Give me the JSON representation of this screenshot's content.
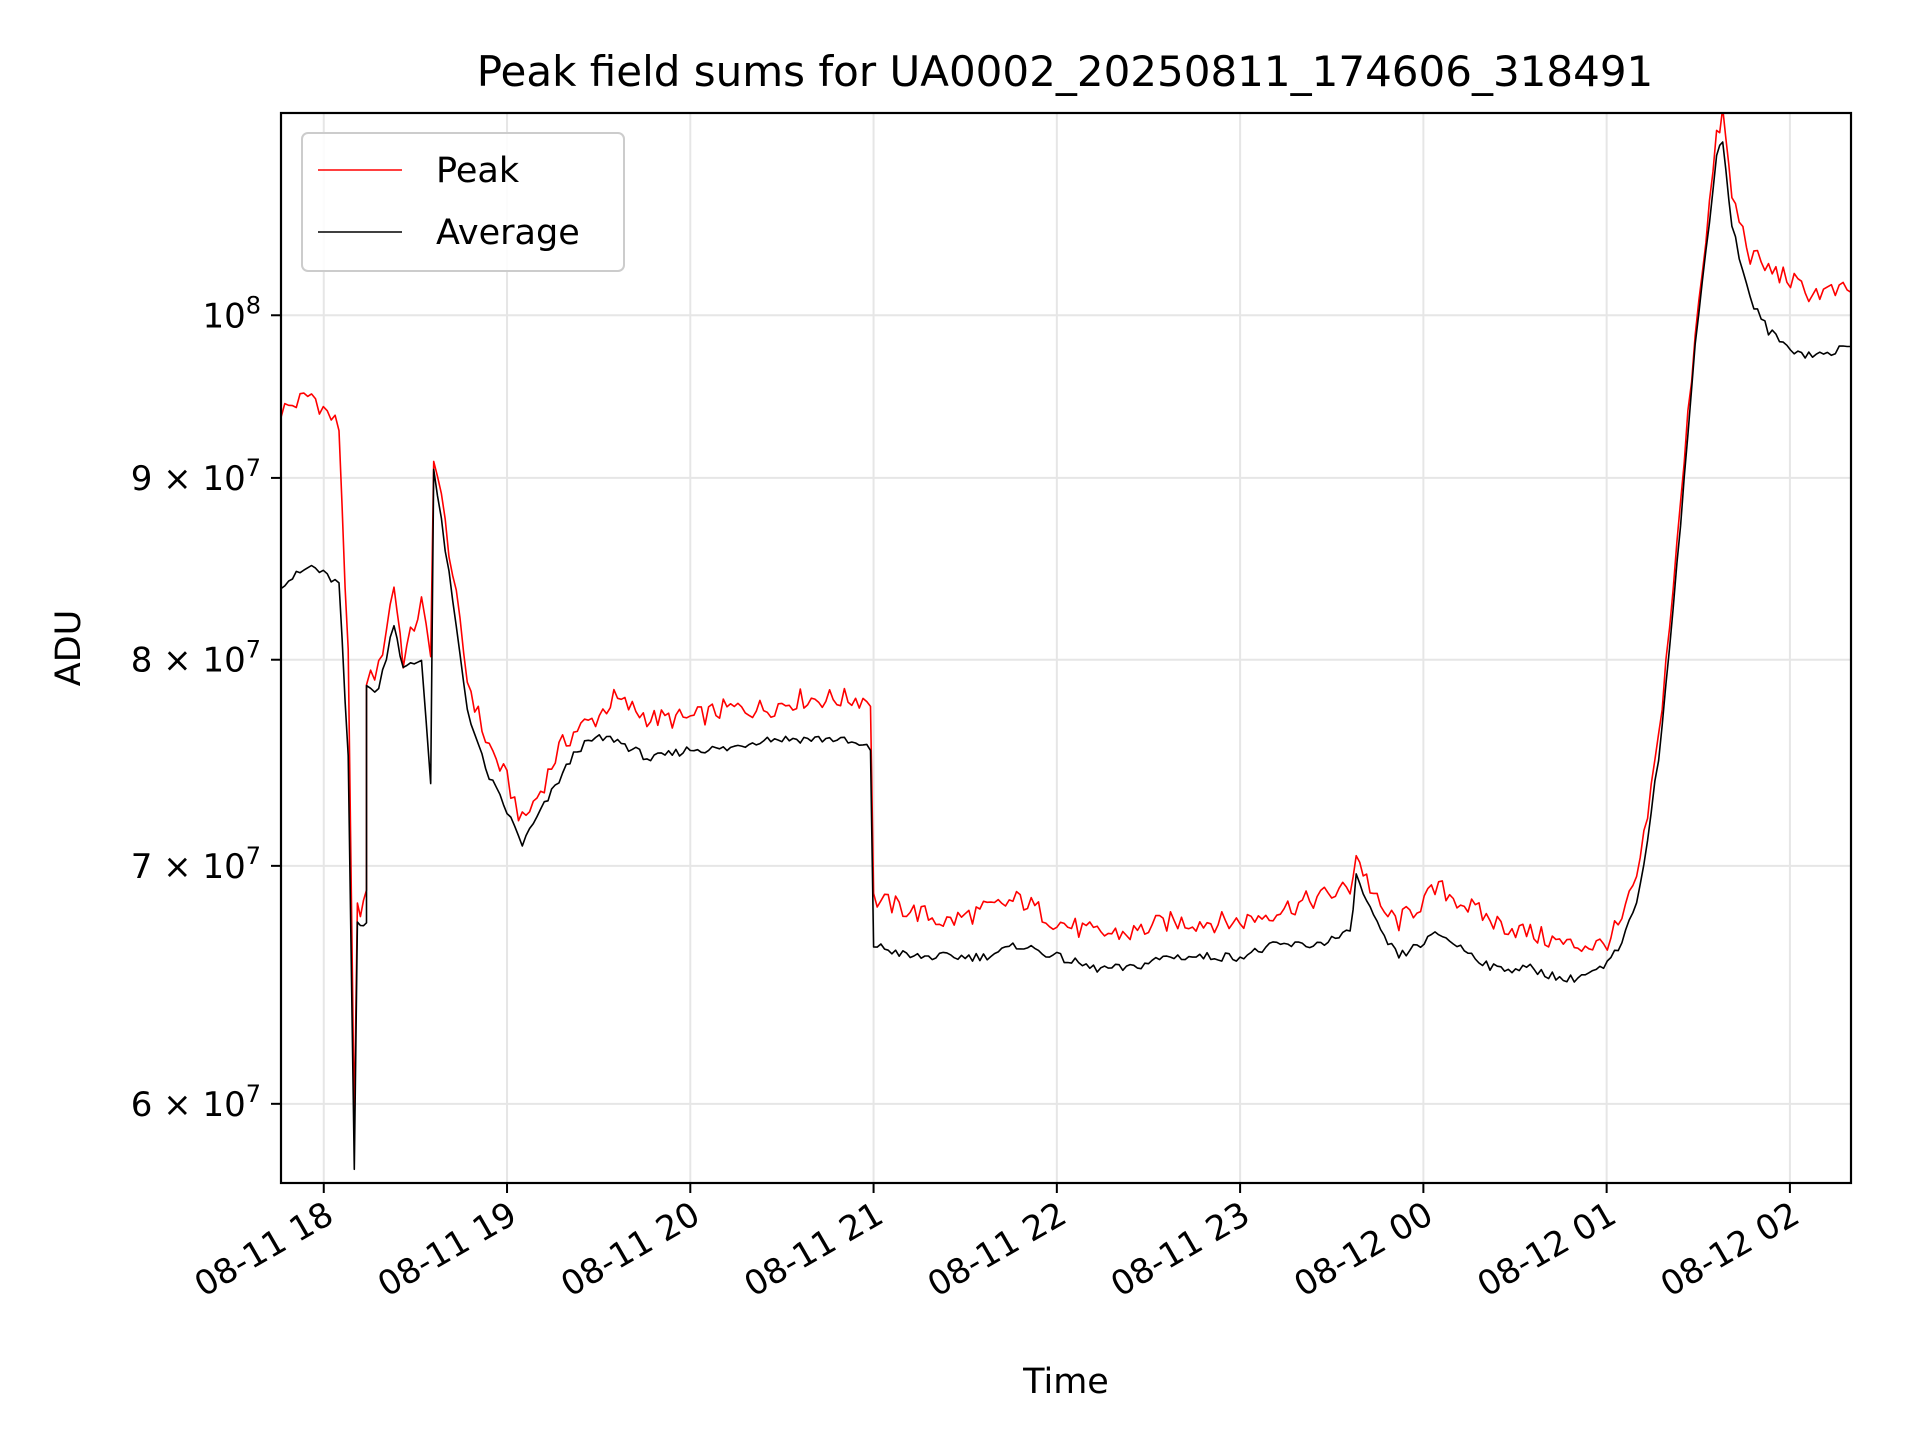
{
  "chart_data": {
    "type": "line",
    "title": "Peak field sums for UA0002_20250811_174606_318491",
    "xlabel": "Time",
    "ylabel": "ADU",
    "y_scale": "log",
    "grid": true,
    "legend_position": "top-left",
    "x_unit": "hours since 2025-08-11 00:00",
    "xlim": [
      "2025-08-11 17:46",
      "2025-08-12 02:20"
    ],
    "ylim": [
      57000000,
      114000000
    ],
    "x_ticks": [
      {
        "value": "2025-08-11 18:00",
        "label": "08-11 18"
      },
      {
        "value": "2025-08-11 19:00",
        "label": "08-11 19"
      },
      {
        "value": "2025-08-11 20:00",
        "label": "08-11 20"
      },
      {
        "value": "2025-08-11 21:00",
        "label": "08-11 21"
      },
      {
        "value": "2025-08-11 22:00",
        "label": "08-11 22"
      },
      {
        "value": "2025-08-11 23:00",
        "label": "08-11 23"
      },
      {
        "value": "2025-08-12 00:00",
        "label": "08-12 00"
      },
      {
        "value": "2025-08-12 01:00",
        "label": "08-12 01"
      },
      {
        "value": "2025-08-12 02:00",
        "label": "08-12 02"
      }
    ],
    "y_ticks": [
      {
        "value": 60000000,
        "mant": "6",
        "exp": "7"
      },
      {
        "value": 70000000,
        "mant": "7",
        "exp": "7"
      },
      {
        "value": 80000000,
        "mant": "8",
        "exp": "7"
      },
      {
        "value": 90000000,
        "mant": "9",
        "exp": "7"
      },
      {
        "value": 100000000,
        "mant": "",
        "exp": "8"
      }
    ],
    "series": [
      {
        "name": "Peak",
        "color": "#ff0000",
        "points": [
          [
            "2025-08-11 17:46",
            94000000
          ],
          [
            "2025-08-11 17:56",
            95000000
          ],
          [
            "2025-08-11 18:05",
            93000000
          ],
          [
            "2025-08-11 18:08",
            80000000
          ],
          [
            "2025-08-11 18:10",
            59000000
          ],
          [
            "2025-08-11 18:11",
            68000000
          ],
          [
            "2025-08-11 18:14",
            68500000
          ],
          [
            "2025-08-11 18:14",
            79000000
          ],
          [
            "2025-08-11 18:18",
            79500000
          ],
          [
            "2025-08-11 18:23",
            84000000
          ],
          [
            "2025-08-11 18:26",
            80000000
          ],
          [
            "2025-08-11 18:32",
            83000000
          ],
          [
            "2025-08-11 18:35",
            80000000
          ],
          [
            "2025-08-11 18:36",
            91500000
          ],
          [
            "2025-08-11 18:41",
            86000000
          ],
          [
            "2025-08-11 18:47",
            79000000
          ],
          [
            "2025-08-11 18:53",
            76000000
          ],
          [
            "2025-08-11 19:00",
            74000000
          ],
          [
            "2025-08-11 19:05",
            72000000
          ],
          [
            "2025-08-11 19:11",
            73500000
          ],
          [
            "2025-08-11 19:17",
            75500000
          ],
          [
            "2025-08-11 19:23",
            76500000
          ],
          [
            "2025-08-11 19:29",
            77000000
          ],
          [
            "2025-08-11 19:35",
            78000000
          ],
          [
            "2025-08-11 19:41",
            77500000
          ],
          [
            "2025-08-11 19:47",
            77000000
          ],
          [
            "2025-08-11 20:00",
            77000000
          ],
          [
            "2025-08-11 20:12",
            77500000
          ],
          [
            "2025-08-11 20:24",
            77500000
          ],
          [
            "2025-08-11 20:36",
            78000000
          ],
          [
            "2025-08-11 20:48",
            78000000
          ],
          [
            "2025-08-11 20:59",
            78000000
          ],
          [
            "2025-08-11 21:00",
            68500000
          ],
          [
            "2025-08-11 21:12",
            68000000
          ],
          [
            "2025-08-11 21:24",
            67500000
          ],
          [
            "2025-08-11 21:36",
            68000000
          ],
          [
            "2025-08-11 21:48",
            68500000
          ],
          [
            "2025-08-11 22:00",
            67500000
          ],
          [
            "2025-08-11 22:12",
            67000000
          ],
          [
            "2025-08-11 22:24",
            67000000
          ],
          [
            "2025-08-11 22:36",
            67500000
          ],
          [
            "2025-08-11 22:48",
            67500000
          ],
          [
            "2025-08-11 23:00",
            67500000
          ],
          [
            "2025-08-11 23:12",
            68000000
          ],
          [
            "2025-08-11 23:24",
            68500000
          ],
          [
            "2025-08-11 23:36",
            69000000
          ],
          [
            "2025-08-11 23:38",
            70500000
          ],
          [
            "2025-08-11 23:46",
            68000000
          ],
          [
            "2025-08-11 23:52",
            67500000
          ],
          [
            "2025-08-12 00:05",
            69000000
          ],
          [
            "2025-08-12 00:11",
            68500000
          ],
          [
            "2025-08-12 00:23",
            67500000
          ],
          [
            "2025-08-12 00:35",
            67000000
          ],
          [
            "2025-08-12 00:47",
            66500000
          ],
          [
            "2025-08-12 00:59",
            66500000
          ],
          [
            "2025-08-12 01:05",
            67500000
          ],
          [
            "2025-08-12 01:11",
            70000000
          ],
          [
            "2025-08-12 01:17",
            76000000
          ],
          [
            "2025-08-12 01:23",
            86000000
          ],
          [
            "2025-08-12 01:29",
            99000000
          ],
          [
            "2025-08-12 01:36",
            112000000
          ],
          [
            "2025-08-12 01:38",
            114000000
          ],
          [
            "2025-08-12 01:41",
            108000000
          ],
          [
            "2025-08-12 01:47",
            104000000
          ],
          [
            "2025-08-12 01:53",
            103000000
          ],
          [
            "2025-08-12 01:59",
            102500000
          ],
          [
            "2025-08-12 02:05",
            101500000
          ],
          [
            "2025-08-12 02:11",
            101500000
          ],
          [
            "2025-08-12 02:20",
            101500000
          ]
        ]
      },
      {
        "name": "Average",
        "color": "#000000",
        "points": [
          [
            "2025-08-11 17:46",
            84000000
          ],
          [
            "2025-08-11 17:56",
            85000000
          ],
          [
            "2025-08-11 18:05",
            84000000
          ],
          [
            "2025-08-11 18:08",
            75000000
          ],
          [
            "2025-08-11 18:10",
            57500000
          ],
          [
            "2025-08-11 18:11",
            67500000
          ],
          [
            "2025-08-11 18:14",
            67500000
          ],
          [
            "2025-08-11 18:14",
            78500000
          ],
          [
            "2025-08-11 18:18",
            78500000
          ],
          [
            "2025-08-11 18:23",
            82000000
          ],
          [
            "2025-08-11 18:26",
            79500000
          ],
          [
            "2025-08-11 18:32",
            80000000
          ],
          [
            "2025-08-11 18:35",
            74000000
          ],
          [
            "2025-08-11 18:36",
            90500000
          ],
          [
            "2025-08-11 18:41",
            84500000
          ],
          [
            "2025-08-11 18:47",
            77500000
          ],
          [
            "2025-08-11 18:53",
            74500000
          ],
          [
            "2025-08-11 19:00",
            72500000
          ],
          [
            "2025-08-11 19:05",
            71000000
          ],
          [
            "2025-08-11 19:11",
            72500000
          ],
          [
            "2025-08-11 19:17",
            74000000
          ],
          [
            "2025-08-11 19:23",
            75500000
          ],
          [
            "2025-08-11 19:29",
            76000000
          ],
          [
            "2025-08-11 19:35",
            76000000
          ],
          [
            "2025-08-11 19:41",
            75500000
          ],
          [
            "2025-08-11 19:47",
            75000000
          ],
          [
            "2025-08-11 20:00",
            75500000
          ],
          [
            "2025-08-11 20:12",
            75500000
          ],
          [
            "2025-08-11 20:24",
            76000000
          ],
          [
            "2025-08-11 20:36",
            76000000
          ],
          [
            "2025-08-11 20:48",
            76000000
          ],
          [
            "2025-08-11 20:59",
            75500000
          ],
          [
            "2025-08-11 21:00",
            66500000
          ],
          [
            "2025-08-11 21:12",
            66000000
          ],
          [
            "2025-08-11 21:24",
            66000000
          ],
          [
            "2025-08-11 21:36",
            66000000
          ],
          [
            "2025-08-11 21:48",
            66500000
          ],
          [
            "2025-08-11 22:00",
            66000000
          ],
          [
            "2025-08-11 22:12",
            65500000
          ],
          [
            "2025-08-11 22:24",
            65500000
          ],
          [
            "2025-08-11 22:36",
            66000000
          ],
          [
            "2025-08-11 22:48",
            66000000
          ],
          [
            "2025-08-11 23:00",
            66000000
          ],
          [
            "2025-08-11 23:12",
            66500000
          ],
          [
            "2025-08-11 23:24",
            66500000
          ],
          [
            "2025-08-11 23:36",
            67000000
          ],
          [
            "2025-08-11 23:38",
            69500000
          ],
          [
            "2025-08-11 23:46",
            67000000
          ],
          [
            "2025-08-11 23:52",
            66000000
          ],
          [
            "2025-08-12 00:05",
            67000000
          ],
          [
            "2025-08-12 00:11",
            66500000
          ],
          [
            "2025-08-12 00:23",
            65500000
          ],
          [
            "2025-08-12 00:35",
            65500000
          ],
          [
            "2025-08-12 00:47",
            65000000
          ],
          [
            "2025-08-12 00:59",
            65500000
          ],
          [
            "2025-08-12 01:05",
            66500000
          ],
          [
            "2025-08-12 01:11",
            69000000
          ],
          [
            "2025-08-12 01:17",
            75000000
          ],
          [
            "2025-08-12 01:23",
            85000000
          ],
          [
            "2025-08-12 01:29",
            98000000
          ],
          [
            "2025-08-12 01:36",
            111000000
          ],
          [
            "2025-08-12 01:38",
            112000000
          ],
          [
            "2025-08-12 01:41",
            106000000
          ],
          [
            "2025-08-12 01:47",
            101000000
          ],
          [
            "2025-08-12 01:53",
            99000000
          ],
          [
            "2025-08-12 01:59",
            98000000
          ],
          [
            "2025-08-12 02:05",
            97500000
          ],
          [
            "2025-08-12 02:11",
            97500000
          ],
          [
            "2025-08-12 02:20",
            98000000
          ]
        ]
      }
    ]
  }
}
